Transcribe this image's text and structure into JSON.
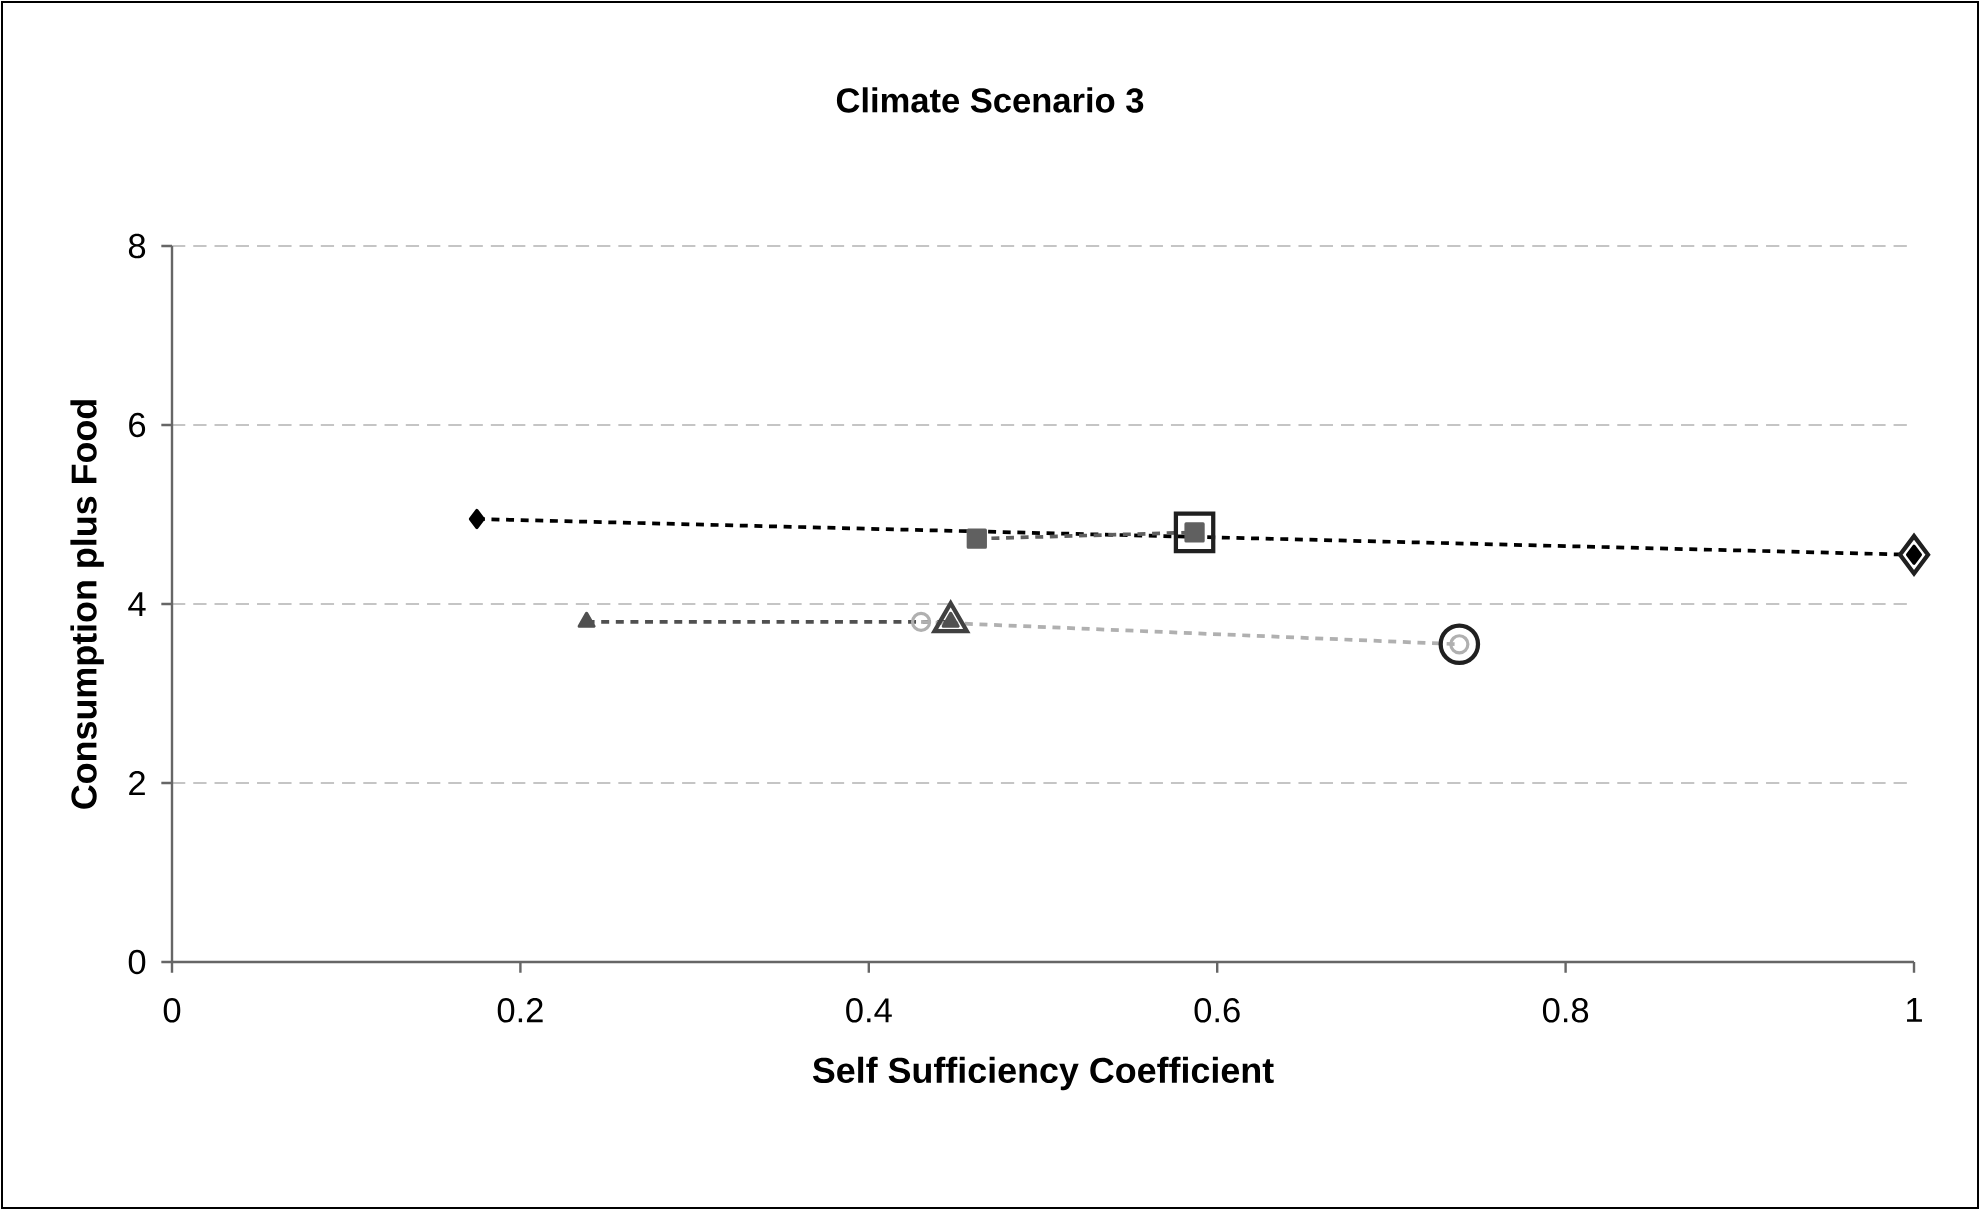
{
  "chart_data": {
    "type": "line",
    "title": "Climate Scenario 3",
    "xlabel": "Self Sufficiency Coefficient",
    "ylabel": "Consumption plus Food",
    "xlim": [
      0,
      1
    ],
    "xticks": [
      0,
      0.2,
      0.4,
      0.6,
      0.8,
      1
    ],
    "ylim": [
      0,
      8
    ],
    "yticks": [
      0,
      2,
      4,
      6,
      8
    ],
    "grid": "y",
    "line_style": "dashed",
    "series": [
      {
        "type": "line",
        "color": "#000000",
        "marker": "diamond",
        "x": [
          0.175,
          1.0
        ],
        "values": [
          4.95,
          4.55
        ]
      },
      {
        "type": "line",
        "color": "#606060",
        "marker": "square",
        "x": [
          0.462,
          0.587
        ],
        "values": [
          4.73,
          4.8
        ]
      },
      {
        "type": "line",
        "color": "#505050",
        "marker": "triangle",
        "x": [
          0.238,
          0.447
        ],
        "values": [
          3.8,
          3.8
        ]
      },
      {
        "type": "line",
        "color": "#b0b0b0",
        "marker": "circle",
        "x": [
          0.43,
          0.739
        ],
        "values": [
          3.8,
          3.55
        ]
      },
      {
        "type": "scatter",
        "color": "#202020",
        "marker": "diamond",
        "x": [
          1.0
        ],
        "values": [
          4.55
        ]
      },
      {
        "type": "scatter",
        "color": "#202020",
        "marker": "square",
        "x": [
          0.587
        ],
        "values": [
          4.8
        ]
      },
      {
        "type": "scatter",
        "color": "#404040",
        "marker": "triangle",
        "x": [
          0.447
        ],
        "values": [
          3.8
        ]
      },
      {
        "type": "scatter",
        "color": "#202020",
        "marker": "circle",
        "x": [
          0.739
        ],
        "values": [
          3.55
        ]
      }
    ]
  }
}
